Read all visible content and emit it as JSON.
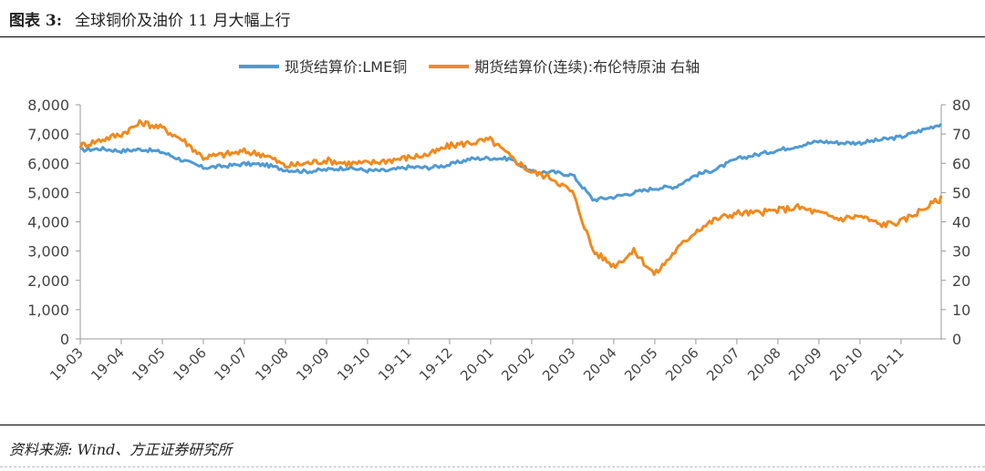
{
  "figure": {
    "label": "图表 3:",
    "title": "全球铜价及油价 11 月大幅上行",
    "source": "资料来源: Wind、方正证券研究所"
  },
  "chart_data": {
    "type": "line",
    "legend_position": "top",
    "grid": false,
    "x_ticks": [
      "19-03",
      "19-04",
      "19-05",
      "19-06",
      "19-07",
      "19-08",
      "19-09",
      "19-10",
      "19-11",
      "19-12",
      "20-01",
      "20-02",
      "20-03",
      "20-04",
      "20-05",
      "20-06",
      "20-07",
      "20-08",
      "20-09",
      "20-10",
      "20-11"
    ],
    "x_range": [
      "2019-03",
      "2020-11-30"
    ],
    "y_left": {
      "ticks": [
        "0",
        "1,000",
        "2,000",
        "3,000",
        "4,000",
        "5,000",
        "6,000",
        "7,000",
        "8,000"
      ],
      "range": [
        0,
        8000
      ]
    },
    "y_right": {
      "ticks": [
        "0",
        "10",
        "20",
        "30",
        "40",
        "50",
        "60",
        "70",
        "80"
      ],
      "range": [
        0,
        80
      ]
    },
    "series": [
      {
        "name": "现货结算价:LME铜",
        "axis": "left",
        "color": "#4f9ad4",
        "points": [
          [
            "19-03",
            6450
          ],
          [
            "19-03b",
            6500
          ],
          [
            "19-04",
            6420
          ],
          [
            "19-04b",
            6480
          ],
          [
            "19-05",
            6380
          ],
          [
            "19-05b",
            6100
          ],
          [
            "19-06",
            5850
          ],
          [
            "19-06b",
            5900
          ],
          [
            "19-07",
            5980
          ],
          [
            "19-07b",
            5950
          ],
          [
            "19-08",
            5780
          ],
          [
            "19-08b",
            5720
          ],
          [
            "19-09",
            5780
          ],
          [
            "19-09b",
            5850
          ],
          [
            "19-10",
            5750
          ],
          [
            "19-10b",
            5750
          ],
          [
            "19-11",
            5870
          ],
          [
            "19-11b",
            5850
          ],
          [
            "19-12",
            5950
          ],
          [
            "19-12b",
            6150
          ],
          [
            "20-01",
            6180
          ],
          [
            "20-01b",
            6150
          ],
          [
            "20-02",
            5700
          ],
          [
            "20-02b",
            5700
          ],
          [
            "20-03",
            5600
          ],
          [
            "20-03b",
            4750
          ],
          [
            "20-04",
            4850
          ],
          [
            "20-04b",
            5000
          ],
          [
            "20-05",
            5150
          ],
          [
            "20-05b",
            5200
          ],
          [
            "20-06",
            5600
          ],
          [
            "20-06b",
            5800
          ],
          [
            "20-07",
            6150
          ],
          [
            "20-07b",
            6300
          ],
          [
            "20-08",
            6450
          ],
          [
            "20-08b",
            6600
          ],
          [
            "20-09",
            6750
          ],
          [
            "20-09b",
            6700
          ],
          [
            "20-10",
            6700
          ],
          [
            "20-10b",
            6800
          ],
          [
            "20-11",
            6900
          ],
          [
            "20-11e",
            7350
          ]
        ]
      },
      {
        "name": "期货结算价(连续):布伦特原油 右轴",
        "axis": "right",
        "color": "#f08a1e",
        "points": [
          [
            "19-03",
            66
          ],
          [
            "19-03b",
            68
          ],
          [
            "19-04",
            70
          ],
          [
            "19-04b",
            74
          ],
          [
            "19-05",
            72
          ],
          [
            "19-05b",
            68
          ],
          [
            "19-06",
            62
          ],
          [
            "19-06b",
            63
          ],
          [
            "19-07",
            64
          ],
          [
            "19-07b",
            63
          ],
          [
            "19-08",
            59
          ],
          [
            "19-08b",
            60
          ],
          [
            "19-09",
            61
          ],
          [
            "19-09b",
            60
          ],
          [
            "19-10",
            60
          ],
          [
            "19-10b",
            61
          ],
          [
            "19-11",
            62
          ],
          [
            "19-11b",
            63
          ],
          [
            "19-12",
            66
          ],
          [
            "19-12b",
            67
          ],
          [
            "20-01",
            68
          ],
          [
            "20-01b",
            62
          ],
          [
            "20-02",
            57
          ],
          [
            "20-02b",
            55
          ],
          [
            "20-03",
            50
          ],
          [
            "20-03b",
            30
          ],
          [
            "20-04",
            25
          ],
          [
            "20-04b",
            30
          ],
          [
            "20-05",
            22
          ],
          [
            "20-05b",
            30
          ],
          [
            "20-06",
            37
          ],
          [
            "20-06b",
            41
          ],
          [
            "20-07",
            43
          ],
          [
            "20-07b",
            43
          ],
          [
            "20-08",
            44
          ],
          [
            "20-08b",
            45
          ],
          [
            "20-09",
            43
          ],
          [
            "20-09b",
            41
          ],
          [
            "20-10",
            42
          ],
          [
            "20-10b",
            39
          ],
          [
            "20-11",
            40
          ],
          [
            "20-11e",
            48
          ]
        ]
      }
    ]
  }
}
